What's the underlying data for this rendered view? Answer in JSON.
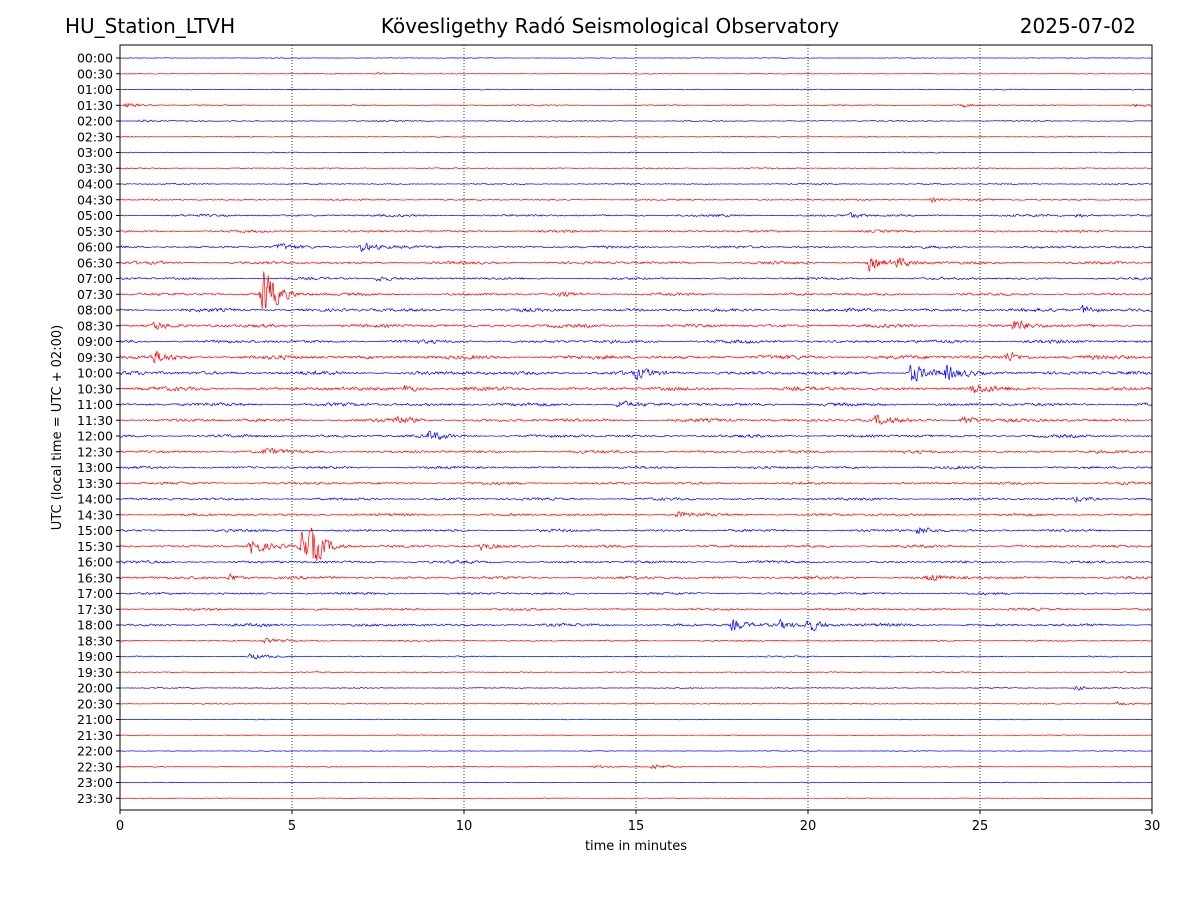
{
  "header": {
    "station": "HU_Station_LTVH",
    "observatory": "Kövesligethy Radó Seismological Observatory",
    "date": "2025-07-02"
  },
  "chart_data": {
    "type": "line",
    "title": "Kövesligethy Radó Seismological Observatory",
    "xlabel": "time in minutes",
    "ylabel": "UTC (local time = UTC + 02:00)",
    "xlim": [
      0,
      30
    ],
    "xticks": [
      0,
      5,
      10,
      15,
      20,
      25,
      30
    ],
    "grid": "vertical dotted lines at each 5 minutes",
    "colors": [
      "#0000ff",
      "#ff0000"
    ],
    "rows": [
      "00:00",
      "00:30",
      "01:00",
      "01:30",
      "02:00",
      "02:30",
      "03:00",
      "03:30",
      "04:00",
      "04:30",
      "05:00",
      "05:30",
      "06:00",
      "06:30",
      "07:00",
      "07:30",
      "08:00",
      "08:30",
      "09:00",
      "09:30",
      "10:00",
      "10:30",
      "11:00",
      "11:30",
      "12:00",
      "12:30",
      "13:00",
      "13:30",
      "14:00",
      "14:30",
      "15:00",
      "15:30",
      "16:00",
      "16:30",
      "17:00",
      "17:30",
      "18:00",
      "18:30",
      "19:00",
      "19:30",
      "20:00",
      "20:30",
      "21:00",
      "21:30",
      "22:00",
      "22:30",
      "23:00",
      "23:30"
    ],
    "noise": [
      0.5,
      0.6,
      0.7,
      1.0,
      1.0,
      0.8,
      0.8,
      0.9,
      1.0,
      1.2,
      1.8,
      1.8,
      2.0,
      2.2,
      1.8,
      2.0,
      2.5,
      2.5,
      2.5,
      3.0,
      3.0,
      2.8,
      2.5,
      2.5,
      2.2,
      2.2,
      2.0,
      2.0,
      2.0,
      2.0,
      2.0,
      2.0,
      2.0,
      2.2,
      1.8,
      1.8,
      2.2,
      1.2,
      1.0,
      0.8,
      0.8,
      0.8,
      0.6,
      0.6,
      0.6,
      0.8,
      0.5,
      0.5
    ],
    "bursts": [
      {
        "row": 1,
        "t": 7.5,
        "amp": 2
      },
      {
        "row": 3,
        "t": 0.2,
        "amp": 3
      },
      {
        "row": 3,
        "t": 24.5,
        "amp": 2
      },
      {
        "row": 3,
        "t": 29.5,
        "amp": 2
      },
      {
        "row": 4,
        "t": 0.6,
        "amp": 2
      },
      {
        "row": 9,
        "t": 23.6,
        "amp": 3
      },
      {
        "row": 10,
        "t": 21.2,
        "amp": 3
      },
      {
        "row": 10,
        "t": 27.8,
        "amp": 3
      },
      {
        "row": 12,
        "t": 4.6,
        "amp": 4
      },
      {
        "row": 12,
        "t": 7.0,
        "amp": 8
      },
      {
        "row": 13,
        "t": 21.8,
        "amp": 9
      },
      {
        "row": 13,
        "t": 22.6,
        "amp": 6
      },
      {
        "row": 14,
        "t": 7.5,
        "amp": 4
      },
      {
        "row": 15,
        "t": 4.15,
        "amp": 40
      },
      {
        "row": 15,
        "t": 12.8,
        "amp": 4
      },
      {
        "row": 16,
        "t": 28.0,
        "amp": 7
      },
      {
        "row": 17,
        "t": 1.0,
        "amp": 5
      },
      {
        "row": 17,
        "t": 26.0,
        "amp": 8
      },
      {
        "row": 19,
        "t": 1.0,
        "amp": 8
      },
      {
        "row": 19,
        "t": 25.8,
        "amp": 6
      },
      {
        "row": 20,
        "t": 15.0,
        "amp": 6
      },
      {
        "row": 20,
        "t": 23.0,
        "amp": 14
      },
      {
        "row": 20,
        "t": 24.0,
        "amp": 8
      },
      {
        "row": 21,
        "t": 8.3,
        "amp": 5
      },
      {
        "row": 21,
        "t": 24.8,
        "amp": 6
      },
      {
        "row": 22,
        "t": 14.5,
        "amp": 5
      },
      {
        "row": 23,
        "t": 8.0,
        "amp": 6
      },
      {
        "row": 23,
        "t": 22.0,
        "amp": 6
      },
      {
        "row": 23,
        "t": 24.5,
        "amp": 7
      },
      {
        "row": 24,
        "t": 9.0,
        "amp": 6
      },
      {
        "row": 25,
        "t": 4.2,
        "amp": 4
      },
      {
        "row": 28,
        "t": 27.8,
        "amp": 4
      },
      {
        "row": 29,
        "t": 16.2,
        "amp": 4
      },
      {
        "row": 30,
        "t": 23.2,
        "amp": 6
      },
      {
        "row": 31,
        "t": 3.8,
        "amp": 12
      },
      {
        "row": 31,
        "t": 5.6,
        "amp": 15
      },
      {
        "row": 31,
        "t": 5.3,
        "amp": 28
      },
      {
        "row": 31,
        "t": 10.5,
        "amp": 5
      },
      {
        "row": 33,
        "t": 3.2,
        "amp": 5
      },
      {
        "row": 33,
        "t": 23.5,
        "amp": 5
      },
      {
        "row": 36,
        "t": 17.8,
        "amp": 7
      },
      {
        "row": 36,
        "t": 19.2,
        "amp": 5
      },
      {
        "row": 36,
        "t": 20.0,
        "amp": 10
      },
      {
        "row": 37,
        "t": 4.2,
        "amp": 3
      },
      {
        "row": 38,
        "t": 3.8,
        "amp": 4
      },
      {
        "row": 40,
        "t": 27.8,
        "amp": 3
      },
      {
        "row": 41,
        "t": 29.0,
        "amp": 3
      },
      {
        "row": 45,
        "t": 15.5,
        "amp": 4
      },
      {
        "row": 45,
        "t": 13.8,
        "amp": 2
      }
    ]
  }
}
